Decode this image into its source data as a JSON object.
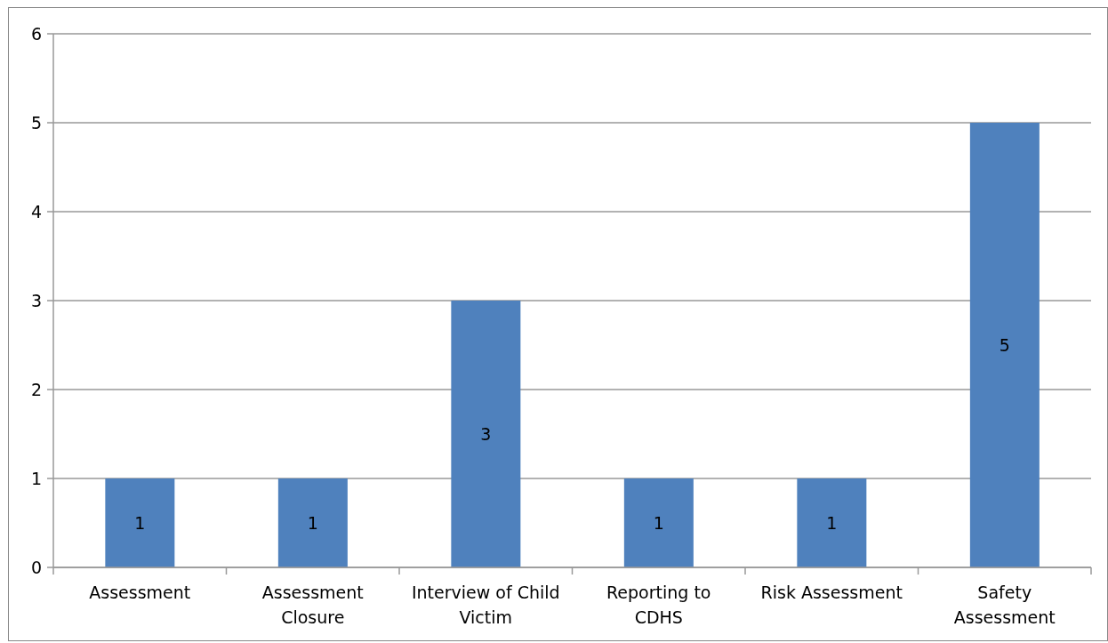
{
  "chart_data": {
    "type": "bar",
    "categories": [
      "Assessment",
      "Assessment Closure",
      "Interview of Child Victim",
      "Reporting to CDHS",
      "Risk Assessment",
      "Safety Assessment"
    ],
    "values": [
      1,
      1,
      3,
      1,
      1,
      5
    ],
    "color": "#4f81bd",
    "ylim": [
      0,
      6
    ],
    "yticks": [
      0,
      1,
      2,
      3,
      4,
      5,
      6
    ],
    "grid": "y",
    "data_labels": true
  }
}
